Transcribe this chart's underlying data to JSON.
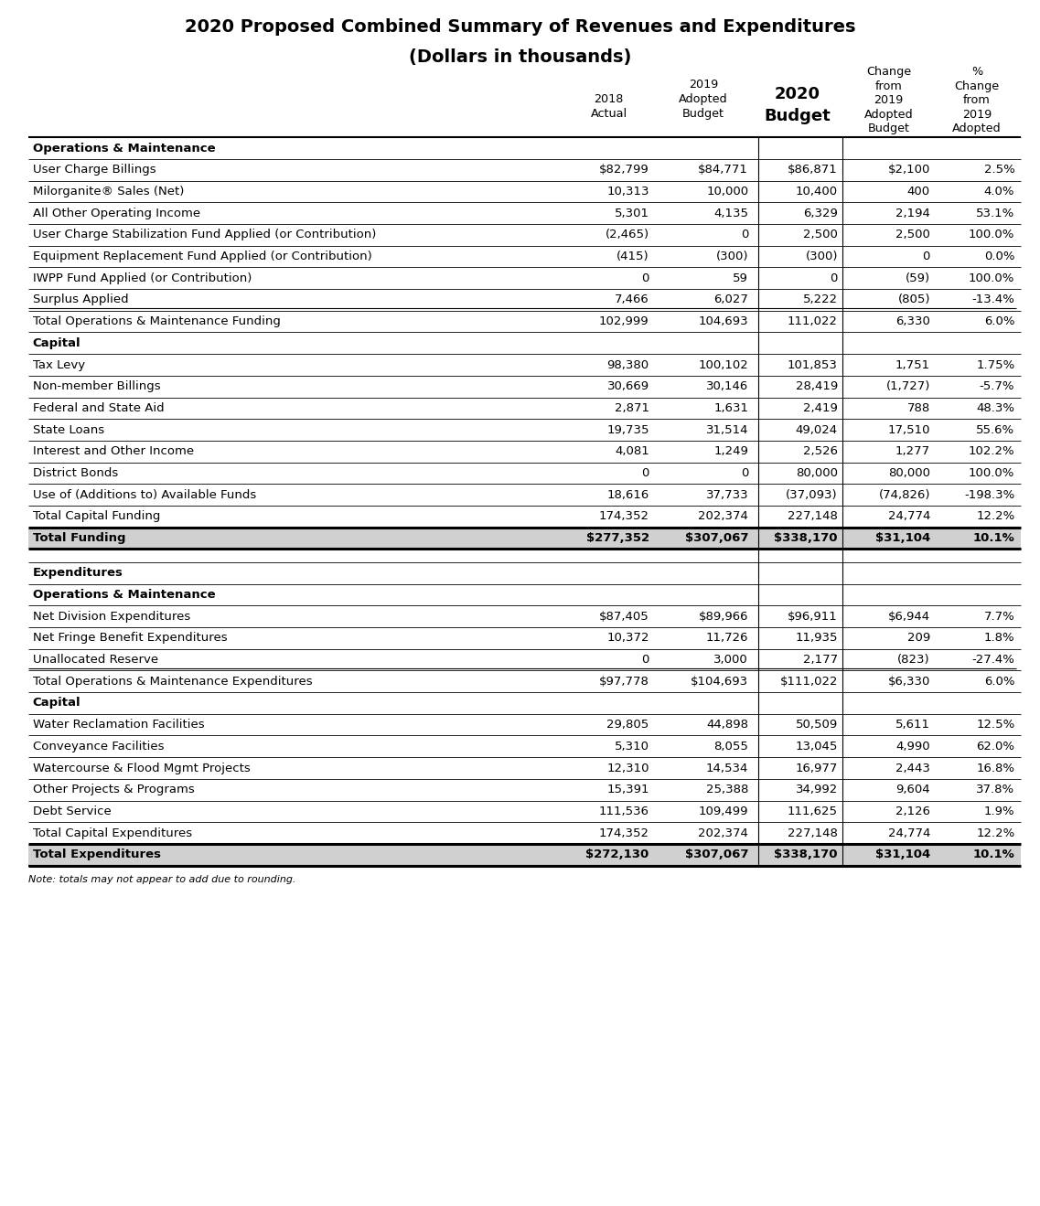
{
  "title_line1": "2020 Proposed Combined Summary of Revenues and Expenditures",
  "title_line2": "(Dollars in thousands)",
  "rows": [
    {
      "label": "Operations & Maintenance",
      "type": "section_header",
      "values": [
        "",
        "",
        "",
        "",
        ""
      ]
    },
    {
      "label": "User Charge Billings",
      "type": "data",
      "values": [
        "$82,799",
        "$84,771",
        "$86,871",
        "$2,100",
        "2.5%"
      ]
    },
    {
      "label": "Milorganite® Sales (Net)",
      "type": "data",
      "values": [
        "10,313",
        "10,000",
        "10,400",
        "400",
        "4.0%"
      ]
    },
    {
      "label": "All Other Operating Income",
      "type": "data",
      "values": [
        "5,301",
        "4,135",
        "6,329",
        "2,194",
        "53.1%"
      ]
    },
    {
      "label": "User Charge Stabilization Fund Applied (or Contribution)",
      "type": "data",
      "values": [
        "(2,465)",
        "0",
        "2,500",
        "2,500",
        "100.0%"
      ]
    },
    {
      "label": "Equipment Replacement Fund Applied (or Contribution)",
      "type": "data",
      "values": [
        "(415)",
        "(300)",
        "(300)",
        "0",
        "0.0%"
      ]
    },
    {
      "label": "IWPP Fund Applied (or Contribution)",
      "type": "data",
      "values": [
        "0",
        "59",
        "0",
        "(59)",
        "100.0%"
      ]
    },
    {
      "label": "Surplus Applied",
      "type": "data",
      "underline": true,
      "values": [
        "7,466",
        "6,027",
        "5,222",
        "(805)",
        "-13.4%"
      ]
    },
    {
      "label": "Total Operations & Maintenance Funding",
      "type": "subtotal",
      "values": [
        "102,999",
        "104,693",
        "111,022",
        "6,330",
        "6.0%"
      ]
    },
    {
      "label": "Capital",
      "type": "section_header",
      "values": [
        "",
        "",
        "",
        "",
        ""
      ]
    },
    {
      "label": "Tax Levy",
      "type": "data",
      "values": [
        "98,380",
        "100,102",
        "101,853",
        "1,751",
        "1.75%"
      ]
    },
    {
      "label": "Non-member Billings",
      "type": "data",
      "values": [
        "30,669",
        "30,146",
        "28,419",
        "(1,727)",
        "-5.7%"
      ]
    },
    {
      "label": "Federal and State Aid",
      "type": "data",
      "values": [
        "2,871",
        "1,631",
        "2,419",
        "788",
        "48.3%"
      ]
    },
    {
      "label": "State Loans",
      "type": "data",
      "values": [
        "19,735",
        "31,514",
        "49,024",
        "17,510",
        "55.6%"
      ]
    },
    {
      "label": "Interest and Other Income",
      "type": "data",
      "values": [
        "4,081",
        "1,249",
        "2,526",
        "1,277",
        "102.2%"
      ]
    },
    {
      "label": "District Bonds",
      "type": "data",
      "values": [
        "0",
        "0",
        "80,000",
        "80,000",
        "100.0%"
      ]
    },
    {
      "label": "Use of (Additions to) Available Funds",
      "type": "data",
      "values": [
        "18,616",
        "37,733",
        "(37,093)",
        "(74,826)",
        "-198.3%"
      ]
    },
    {
      "label": "Total Capital Funding",
      "type": "subtotal",
      "values": [
        "174,352",
        "202,374",
        "227,148",
        "24,774",
        "12.2%"
      ]
    },
    {
      "label": "Total Funding",
      "type": "grand_total",
      "values": [
        "$277,352",
        "$307,067",
        "$338,170",
        "$31,104",
        "10.1%"
      ]
    },
    {
      "label": "",
      "type": "spacer",
      "values": [
        "",
        "",
        "",
        "",
        ""
      ]
    },
    {
      "label": "Expenditures",
      "type": "section_header",
      "values": [
        "",
        "",
        "",
        "",
        ""
      ]
    },
    {
      "label": "Operations & Maintenance",
      "type": "section_header",
      "values": [
        "",
        "",
        "",
        "",
        ""
      ]
    },
    {
      "label": "Net Division Expenditures",
      "type": "data",
      "values": [
        "$87,405",
        "$89,966",
        "$96,911",
        "$6,944",
        "7.7%"
      ]
    },
    {
      "label": "Net Fringe Benefit Expenditures",
      "type": "data",
      "values": [
        "10,372",
        "11,726",
        "11,935",
        "209",
        "1.8%"
      ]
    },
    {
      "label": "Unallocated Reserve",
      "type": "data",
      "underline": true,
      "values": [
        "0",
        "3,000",
        "2,177",
        "(823)",
        "-27.4%"
      ]
    },
    {
      "label": "Total Operations & Maintenance Expenditures",
      "type": "subtotal",
      "values": [
        "$97,778",
        "$104,693",
        "$111,022",
        "$6,330",
        "6.0%"
      ]
    },
    {
      "label": "Capital",
      "type": "section_header",
      "values": [
        "",
        "",
        "",
        "",
        ""
      ]
    },
    {
      "label": "Water Reclamation Facilities",
      "type": "data",
      "values": [
        "29,805",
        "44,898",
        "50,509",
        "5,611",
        "12.5%"
      ]
    },
    {
      "label": "Conveyance Facilities",
      "type": "data",
      "values": [
        "5,310",
        "8,055",
        "13,045",
        "4,990",
        "62.0%"
      ]
    },
    {
      "label": "Watercourse & Flood Mgmt Projects",
      "type": "data",
      "values": [
        "12,310",
        "14,534",
        "16,977",
        "2,443",
        "16.8%"
      ]
    },
    {
      "label": "Other Projects & Programs",
      "type": "data",
      "values": [
        "15,391",
        "25,388",
        "34,992",
        "9,604",
        "37.8%"
      ]
    },
    {
      "label": "Debt Service",
      "type": "data",
      "values": [
        "111,536",
        "109,499",
        "111,625",
        "2,126",
        "1.9%"
      ]
    },
    {
      "label": "Total Capital Expenditures",
      "type": "subtotal",
      "values": [
        "174,352",
        "202,374",
        "227,148",
        "24,774",
        "12.2%"
      ]
    },
    {
      "label": "Total Expenditures",
      "type": "grand_total",
      "values": [
        "$272,130",
        "$307,067",
        "$338,170",
        "$31,104",
        "10.1%"
      ]
    }
  ],
  "footnote": "Note: totals may not appear to add due to rounding.",
  "bg_color": "#ffffff",
  "shaded_color": "#d0d0d0",
  "line_color": "#000000"
}
